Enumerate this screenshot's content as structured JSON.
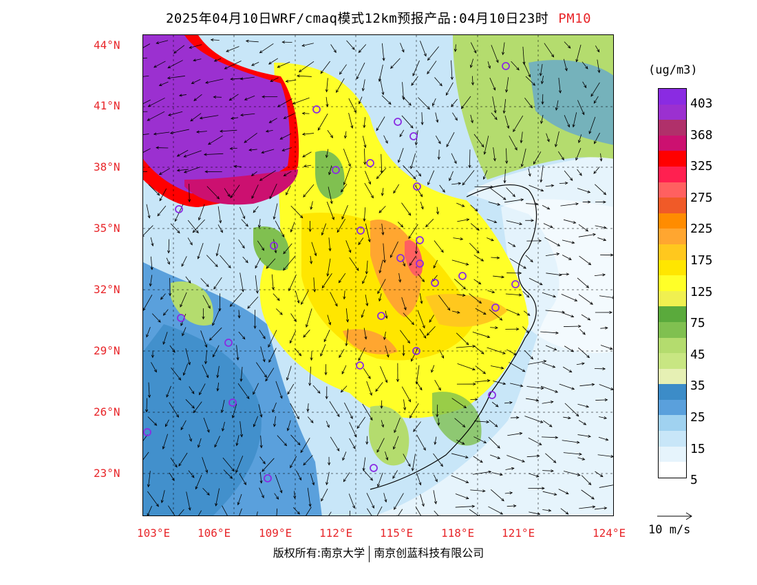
{
  "title": {
    "main": "2025年04月10日WRF/cmaq模式12km预报产品:04月10日23时",
    "pollutant": "PM10"
  },
  "map": {
    "lat_labels": [
      "44°N",
      "41°N",
      "38°N",
      "35°N",
      "32°N",
      "29°N",
      "26°N",
      "23°N"
    ],
    "lon_labels": [
      "103°E",
      "106°E",
      "109°E",
      "112°E",
      "115°E",
      "118°E",
      "121°E",
      "124°E"
    ],
    "lon_range": [
      102.7,
      124.0
    ],
    "lat_range": [
      21.0,
      44.5
    ]
  },
  "legend": {
    "unit": "(ug/m3)",
    "colors": [
      "#8a2be2",
      "#9b30d0",
      "#b0306a",
      "#cc1070",
      "#ff0000",
      "#ff2050",
      "#ff6060",
      "#f05a28",
      "#ff8c00",
      "#ffa630",
      "#ffc81e",
      "#ffe600",
      "#ffff28",
      "#f0f050",
      "#5aaa3c",
      "#80c050",
      "#b4dc6e",
      "#c8e682",
      "#e6f0b4",
      "#3c8cc8",
      "#5aa0dc",
      "#a0d2f0",
      "#c8e6f8",
      "#e6f4fc",
      "#ffffff"
    ],
    "labels": [
      "403",
      "368",
      "325",
      "275",
      "225",
      "175",
      "125",
      "75",
      "45",
      "35",
      "25",
      "15",
      "5"
    ]
  },
  "wind_reference": {
    "label": "10 m/s"
  },
  "footer": {
    "left": "版权所有:南京大学",
    "right": "南京创蓝科技有限公司"
  }
}
